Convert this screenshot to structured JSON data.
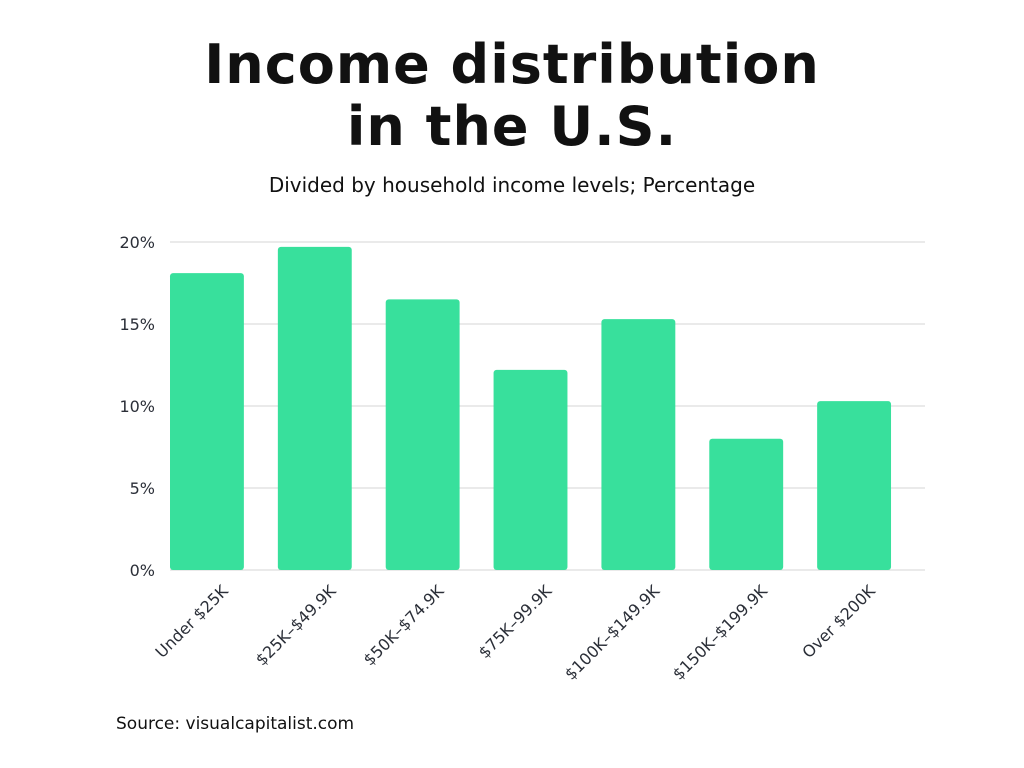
{
  "title_lines": [
    "Income distribution",
    "in the U.S."
  ],
  "subtitle": "Divided by household income levels; Percentage",
  "source": "Source: visualcapitalist.com",
  "colors": {
    "bar": "#38e09c",
    "grid": "#d4d4d4",
    "text": "#111111"
  },
  "chart_data": {
    "type": "bar",
    "title": "Income distribution in the U.S.",
    "subtitle": "Divided by household income levels; Percentage",
    "categories": [
      "Under $25K",
      "$25K–$49.9K",
      "$50K–$74.9K",
      "$75K–99.9K",
      "$100K–$149.9K",
      "$150K–$199.9K",
      "Over $200K"
    ],
    "values": [
      18.1,
      19.7,
      16.5,
      12.2,
      15.3,
      8.0,
      10.3
    ],
    "unit": "%",
    "ylim": [
      0,
      20
    ],
    "yticks": [
      0,
      5,
      10,
      15,
      20
    ],
    "ytick_labels": [
      "0%",
      "5%",
      "10%",
      "15%",
      "20%"
    ],
    "grid": true,
    "xlabel": "",
    "ylabel": ""
  }
}
